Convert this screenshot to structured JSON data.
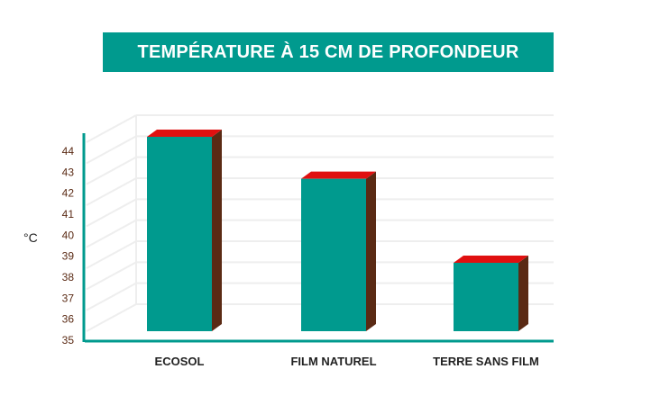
{
  "colors": {
    "accent": "#009a8e",
    "bar_top": "#e01010",
    "bar_side": "#5a2a14",
    "axis": "#009a8e",
    "grid": "#eeeeee",
    "tick_text": "#5a2a14"
  },
  "chart_data": {
    "type": "bar",
    "title": "TEMPÉRATURE À 15 CM DE PROFONDEUR",
    "ylabel": "°C",
    "xlabel": "",
    "categories": [
      "ECOSOL",
      "FILM NATUREL",
      "TERRE SANS FILM"
    ],
    "values": [
      44,
      42,
      38
    ],
    "ylim": [
      35,
      44
    ],
    "yticks": [
      "35",
      "36",
      "37",
      "38",
      "39",
      "40",
      "41",
      "42",
      "43",
      "44"
    ],
    "grid": true,
    "style": "3d"
  }
}
